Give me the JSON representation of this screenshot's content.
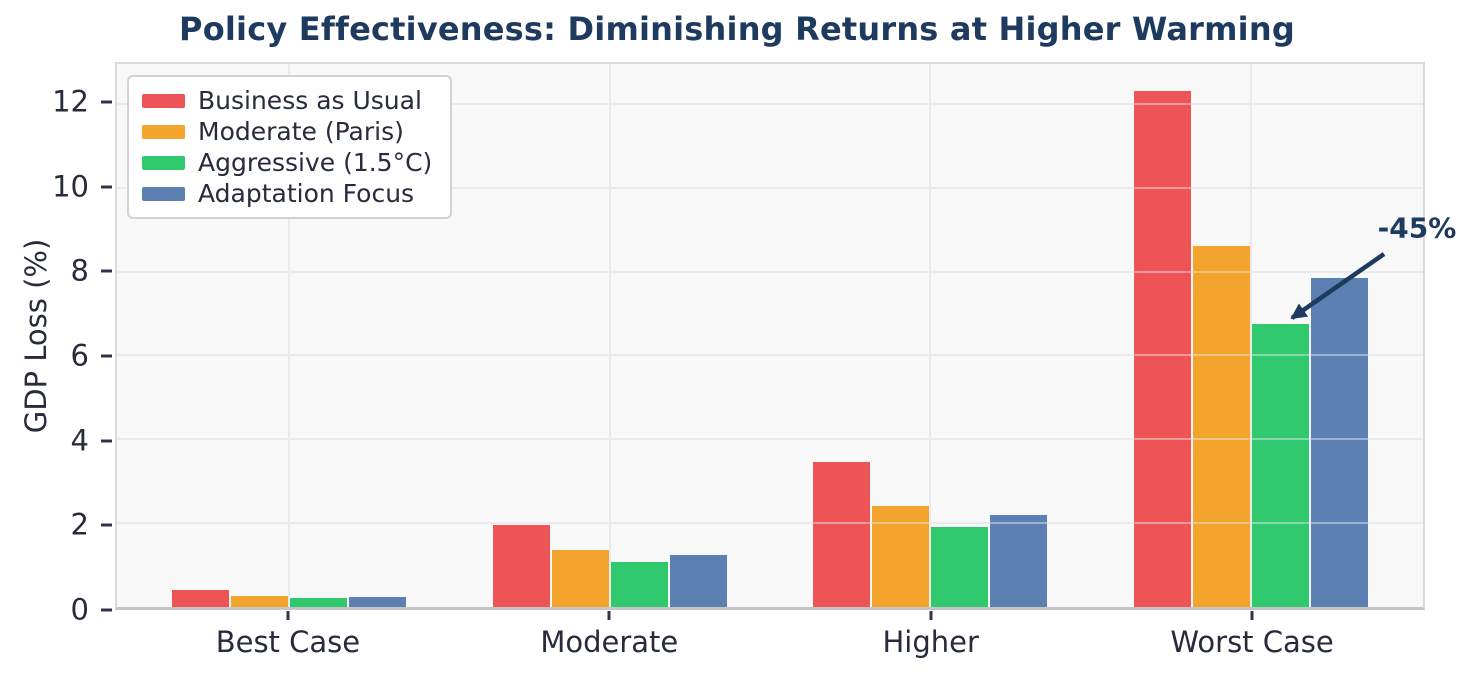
{
  "chart_data": {
    "type": "bar",
    "title": "Policy Effectiveness: Diminishing Returns at Higher Warming",
    "ylabel": "GDP Loss (%)",
    "xlabel": "",
    "categories": [
      "Best Case",
      "Moderate",
      "Higher",
      "Worst Case"
    ],
    "series": [
      {
        "name": "Business as Usual",
        "color": "#ee5456",
        "values": [
          0.4,
          1.95,
          3.45,
          12.3
        ]
      },
      {
        "name": "Moderate (Paris)",
        "color": "#f2a42c",
        "values": [
          0.27,
          1.37,
          2.4,
          8.6
        ]
      },
      {
        "name": "Aggressive (1.5°C)",
        "color": "#31c96e",
        "values": [
          0.21,
          1.07,
          1.9,
          6.75
        ]
      },
      {
        "name": "Adaptation Focus",
        "color": "#5c80b2",
        "values": [
          0.25,
          1.25,
          2.2,
          7.85
        ]
      }
    ],
    "yticks": [
      0,
      2,
      4,
      6,
      8,
      10,
      12
    ],
    "ylim": [
      0,
      12.95
    ],
    "grid": true,
    "legend_position": "upper-left",
    "annotation": {
      "text": "-45%",
      "points_to": "Aggressive (1.5°C) bar in Worst Case group"
    },
    "colors": {
      "title": "#1e3a5f",
      "axis_text": "#272b3c",
      "tick_mark": "#30344a",
      "annotation": "#1e3a5f",
      "plot_background": "#f8f8f8",
      "gridline": "#e7e7ea"
    }
  }
}
